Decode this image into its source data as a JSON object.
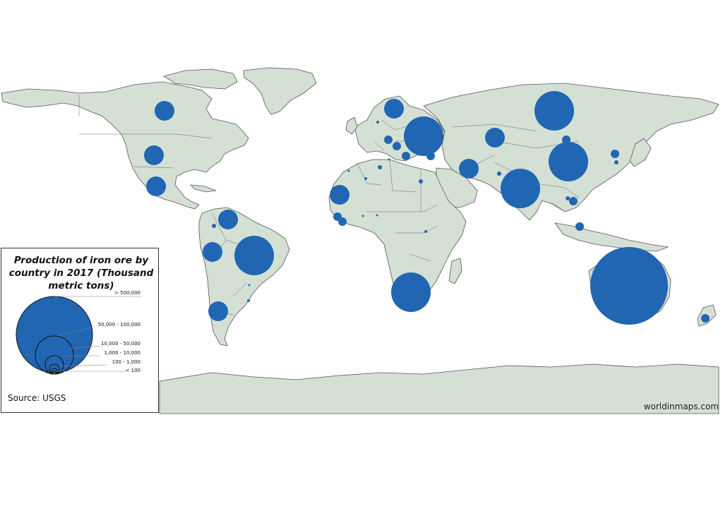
{
  "map": {
    "title": "Production of iron ore by country in 2017 (Thousand metric tons)",
    "fill_color": "#2166b3",
    "land_color": "#d5e0d5",
    "legend_classes": [
      "> 500,000",
      "50,000 - 100,000",
      "10,000 - 50,000",
      "1,000 - 10,000",
      "100 - 1,000",
      "< 100"
    ],
    "source": "Source: USGS",
    "credit": "worldinmaps.com"
  }
}
